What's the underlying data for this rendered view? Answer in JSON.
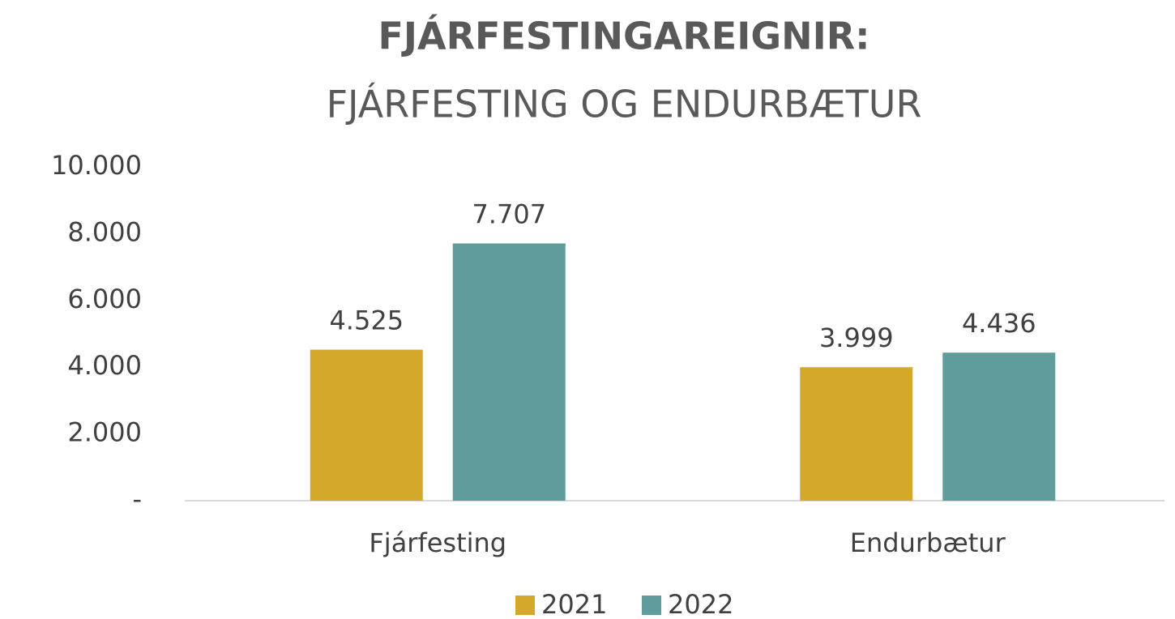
{
  "chart_data": {
    "type": "bar",
    "title": "FJÁRFESTINGAREIGNIR:",
    "subtitle": "FJÁRFESTING OG ENDURBÆTUR",
    "categories": [
      "Fjárfesting",
      "Endurbætur"
    ],
    "series": [
      {
        "name": "2021",
        "color": "#d4a82a",
        "values": [
          4525,
          3999
        ],
        "value_labels": [
          "4.525",
          "3.999"
        ]
      },
      {
        "name": "2022",
        "color": "#5f9c9b",
        "values": [
          7707,
          4436
        ],
        "value_labels": [
          "7.707",
          "4.436"
        ]
      }
    ],
    "ylim": [
      0,
      10000
    ],
    "yticks": [
      {
        "value": 0,
        "label": "-"
      },
      {
        "value": 2000,
        "label": "2.000"
      },
      {
        "value": 4000,
        "label": "4.000"
      },
      {
        "value": 6000,
        "label": "6.000"
      },
      {
        "value": 8000,
        "label": "8.000"
      },
      {
        "value": 10000,
        "label": "10.000"
      }
    ],
    "grid": false,
    "legend": "bottom"
  }
}
